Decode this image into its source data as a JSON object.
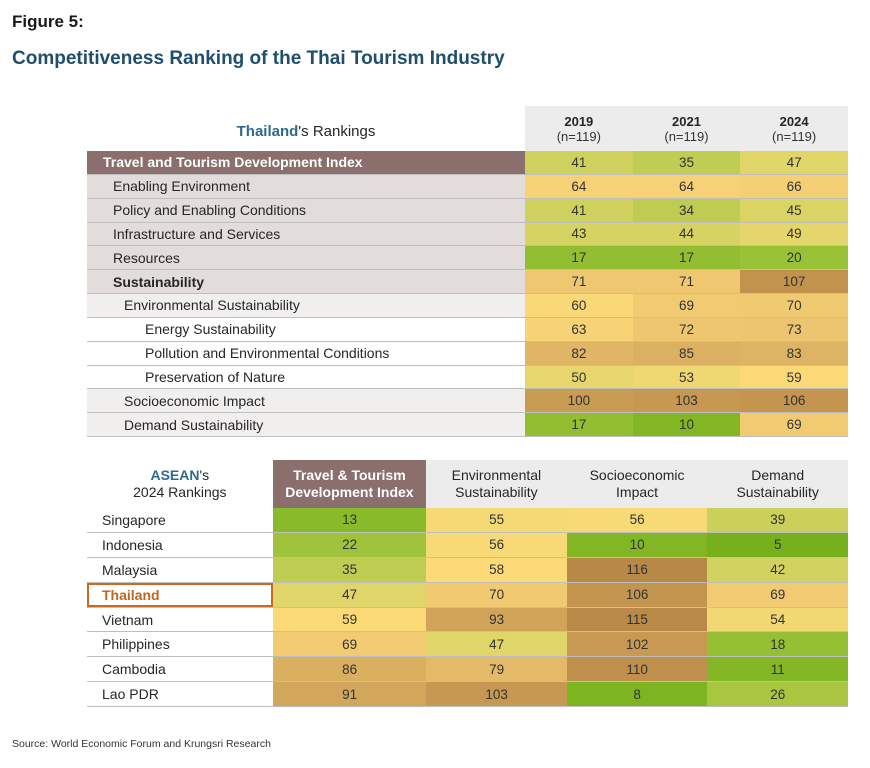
{
  "figure_label": "Figure 5:",
  "title": "Competitiveness Ranking of the Thai Tourism Industry",
  "source": "Source: World Economic Forum and Krungsri Research",
  "colors": {
    "header_brown": "#8a6f6c",
    "title_blue": "#1f4e6e",
    "highlight_orange": "#c86a22"
  },
  "chart_data": [
    {
      "type": "table",
      "header_highlight": "Thailand",
      "header_rest": "'s Rankings",
      "columns": [
        {
          "year": "2019",
          "n": "(n=119)"
        },
        {
          "year": "2021",
          "n": "(n=119)"
        },
        {
          "year": "2024",
          "n": "(n=119)"
        }
      ],
      "rows": [
        {
          "label": "Travel and Tourism Development Index",
          "level": "hdr",
          "values": [
            41,
            35,
            47
          ]
        },
        {
          "label": "Enabling Environment",
          "level": "l1",
          "values": [
            64,
            64,
            66
          ]
        },
        {
          "label": "Policy and Enabling Conditions",
          "level": "l1",
          "values": [
            41,
            34,
            45
          ]
        },
        {
          "label": "Infrastructure and Services",
          "level": "l1",
          "values": [
            43,
            44,
            49
          ]
        },
        {
          "label": "Resources",
          "level": "l1",
          "values": [
            17,
            17,
            20
          ]
        },
        {
          "label": "Sustainability",
          "level": "l1b",
          "values": [
            71,
            71,
            107
          ]
        },
        {
          "label": "Environmental Sustainability",
          "level": "l2",
          "values": [
            60,
            69,
            70
          ]
        },
        {
          "label": "Energy Sustainability",
          "level": "l3",
          "values": [
            63,
            72,
            73
          ]
        },
        {
          "label": "Pollution and Environmental Conditions",
          "level": "l3",
          "values": [
            82,
            85,
            83
          ]
        },
        {
          "label": "Preservation of Nature",
          "level": "l3",
          "values": [
            50,
            53,
            59
          ]
        },
        {
          "label": "Socioeconomic Impact",
          "level": "l2",
          "values": [
            100,
            103,
            106
          ]
        },
        {
          "label": "Demand Sustainability",
          "level": "l2",
          "values": [
            17,
            10,
            69
          ]
        }
      ]
    },
    {
      "type": "table",
      "header_highlight": "ASEAN",
      "header_rest": "'s",
      "header_line2": "2024 Rankings",
      "columns": [
        "Travel & Tourism Development Index",
        "Environmental Sustainability",
        "Socioeconomic Impact",
        "Demand Sustainability"
      ],
      "rows": [
        {
          "country": "Singapore",
          "values": [
            13,
            55,
            56,
            39
          ]
        },
        {
          "country": "Indonesia",
          "values": [
            22,
            56,
            10,
            5
          ]
        },
        {
          "country": "Malaysia",
          "values": [
            35,
            58,
            116,
            42
          ]
        },
        {
          "country": "Thailand",
          "values": [
            47,
            70,
            106,
            69
          ],
          "highlight": true
        },
        {
          "country": "Vietnam",
          "values": [
            59,
            93,
            115,
            54
          ]
        },
        {
          "country": "Philippines",
          "values": [
            69,
            47,
            102,
            18
          ]
        },
        {
          "country": "Cambodia",
          "values": [
            86,
            79,
            110,
            11
          ]
        },
        {
          "country": "Lao PDR",
          "values": [
            91,
            103,
            8,
            26
          ]
        }
      ]
    }
  ]
}
